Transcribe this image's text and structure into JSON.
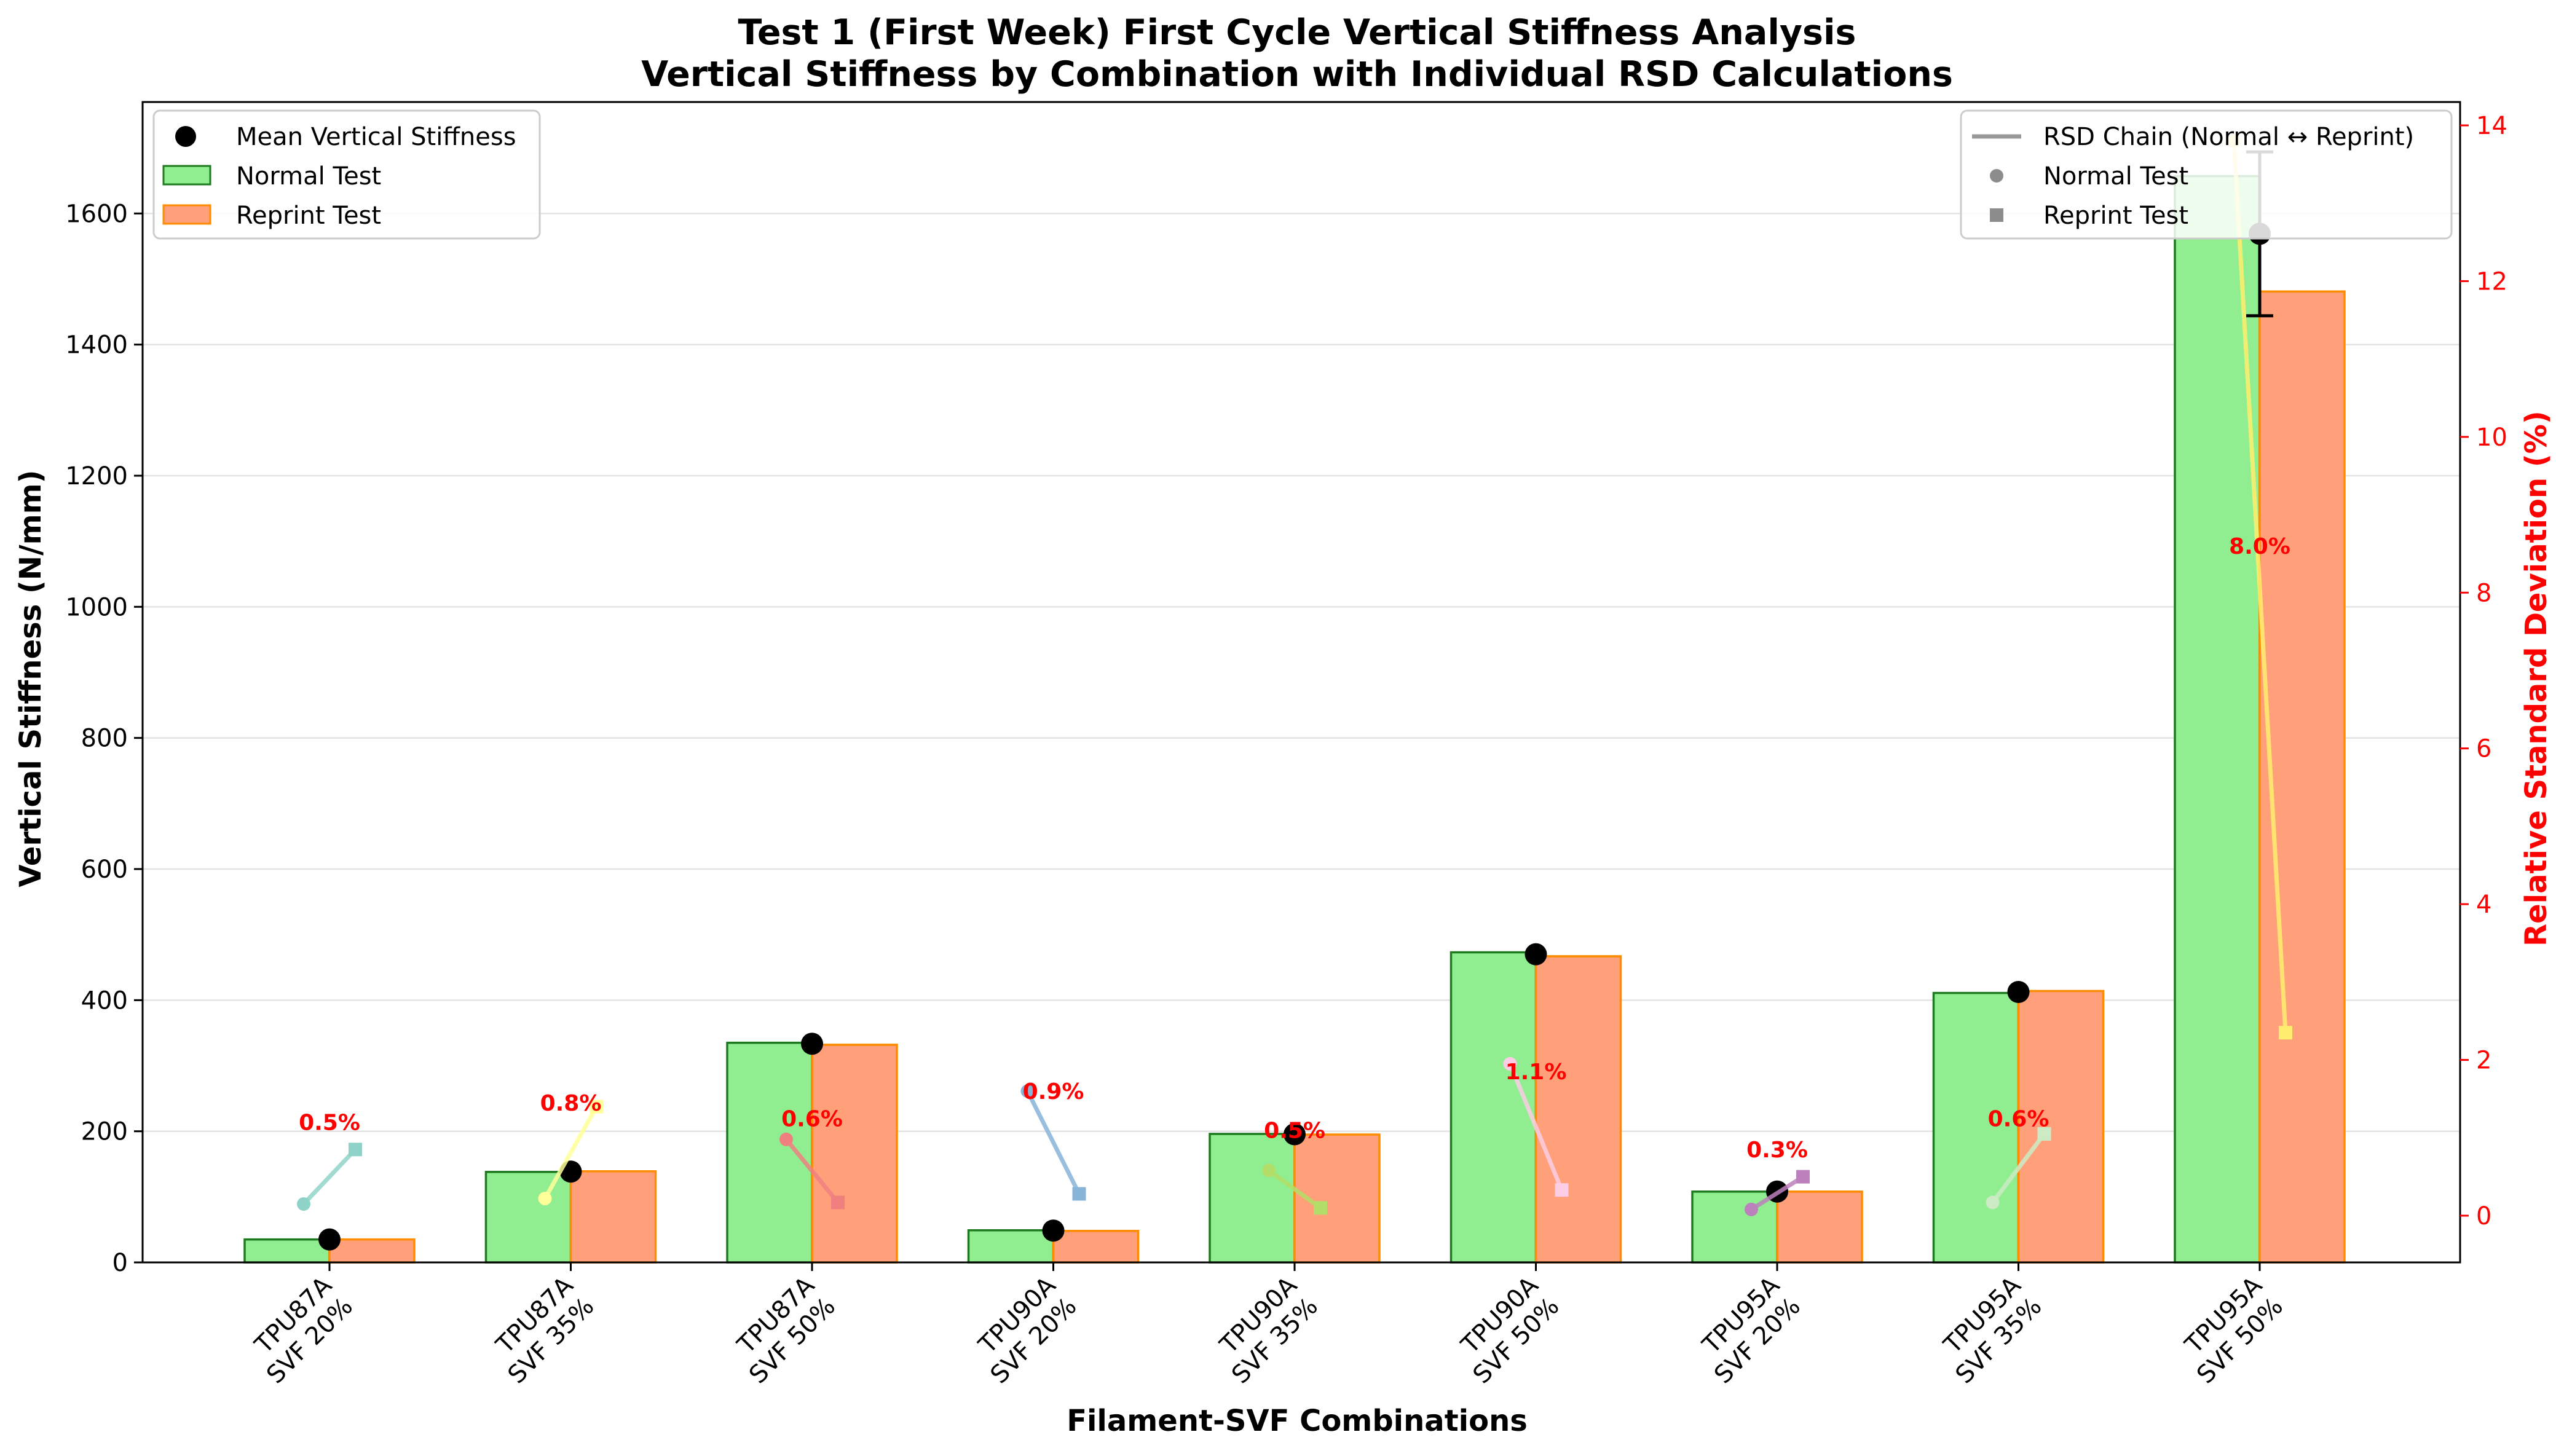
{
  "chart_data": {
    "type": "bar",
    "title": "Test 1 (First Week) First Cycle Vertical Stiffness Analysis",
    "subtitle": "Vertical Stiffness by Combination with Individual RSD Calculations",
    "xlabel": "Filament-SVF Combinations",
    "ylabel": "Vertical Stiffness (N/mm)",
    "y2label": "Relative Standard Deviation (%)",
    "ylim": [
      0,
      1770
    ],
    "y2lim": [
      -0.6,
      14.3
    ],
    "yticks": [
      "0",
      "200",
      "400",
      "600",
      "800",
      "1000",
      "1200",
      "1400",
      "1600"
    ],
    "y2ticks": [
      "0",
      "2",
      "4",
      "6",
      "8",
      "10",
      "12",
      "14"
    ],
    "grid": true,
    "categories": [
      {
        "line1": "TPU87A",
        "line2": "SVF 20%"
      },
      {
        "line1": "TPU87A",
        "line2": "SVF 35%"
      },
      {
        "line1": "TPU87A",
        "line2": "SVF 50%"
      },
      {
        "line1": "TPU90A",
        "line2": "SVF 20%"
      },
      {
        "line1": "TPU90A",
        "line2": "SVF 35%"
      },
      {
        "line1": "TPU90A",
        "line2": "SVF 50%"
      },
      {
        "line1": "TPU95A",
        "line2": "SVF 20%"
      },
      {
        "line1": "TPU95A",
        "line2": "SVF 35%"
      },
      {
        "line1": "TPU95A",
        "line2": "SVF 50%"
      }
    ],
    "series": [
      {
        "name": "Normal Test",
        "color": "#90ee90",
        "edge": "#1e7a1e",
        "values": [
          35,
          138,
          335,
          49,
          196,
          473,
          108,
          411,
          1657
        ]
      },
      {
        "name": "Reprint Test",
        "color": "#ffa07a",
        "edge": "#ff8c00",
        "values": [
          35,
          139,
          332,
          48,
          195,
          467,
          108,
          414,
          1481
        ]
      }
    ],
    "mean": {
      "name": "Mean Vertical Stiffness",
      "values": [
        35,
        138.5,
        333.5,
        48.5,
        195.5,
        470,
        108,
        412.5,
        1569
      ],
      "err": [
        2,
        2,
        3,
        2,
        2,
        5,
        2,
        3,
        125
      ]
    },
    "rsd_labels": [
      "0.5%",
      "0.8%",
      "0.6%",
      "0.9%",
      "0.5%",
      "1.1%",
      "0.3%",
      "0.6%",
      "8.0%"
    ],
    "rsd_label_values": [
      1.1,
      1.35,
      1.15,
      1.5,
      1.0,
      1.75,
      0.75,
      1.15,
      8.5
    ],
    "rsd_chains": [
      {
        "normal": 0.15,
        "reprint": 0.85,
        "color": "#8fd3c8"
      },
      {
        "normal": 0.22,
        "reprint": 1.4,
        "color": "#ffff99"
      },
      {
        "normal": 0.98,
        "reprint": 0.17,
        "color": "#f08080"
      },
      {
        "normal": 1.6,
        "reprint": 0.28,
        "color": "#88b4d8"
      },
      {
        "normal": 0.58,
        "reprint": 0.1,
        "color": "#b3de69"
      },
      {
        "normal": 1.95,
        "reprint": 0.33,
        "color": "#fccde5"
      },
      {
        "normal": 0.08,
        "reprint": 0.5,
        "color": "#bc80bd"
      },
      {
        "normal": 0.17,
        "reprint": 1.05,
        "color": "#ccebc5"
      },
      {
        "normal": 13.8,
        "reprint": 2.35,
        "color": "#ffed6f"
      }
    ],
    "legend_left": [
      {
        "label": "Mean Vertical Stiffness",
        "kind": "dot"
      },
      {
        "label": "Normal Test",
        "kind": "normal-patch"
      },
      {
        "label": "Reprint Test",
        "kind": "reprint-patch"
      }
    ],
    "legend_right": [
      {
        "label": "RSD Chain (Normal ↔ Reprint)",
        "kind": "line"
      },
      {
        "label": "Normal Test",
        "kind": "circle"
      },
      {
        "label": "Reprint Test",
        "kind": "square"
      }
    ],
    "legend_placement": [
      "top-left",
      "top-right"
    ]
  }
}
